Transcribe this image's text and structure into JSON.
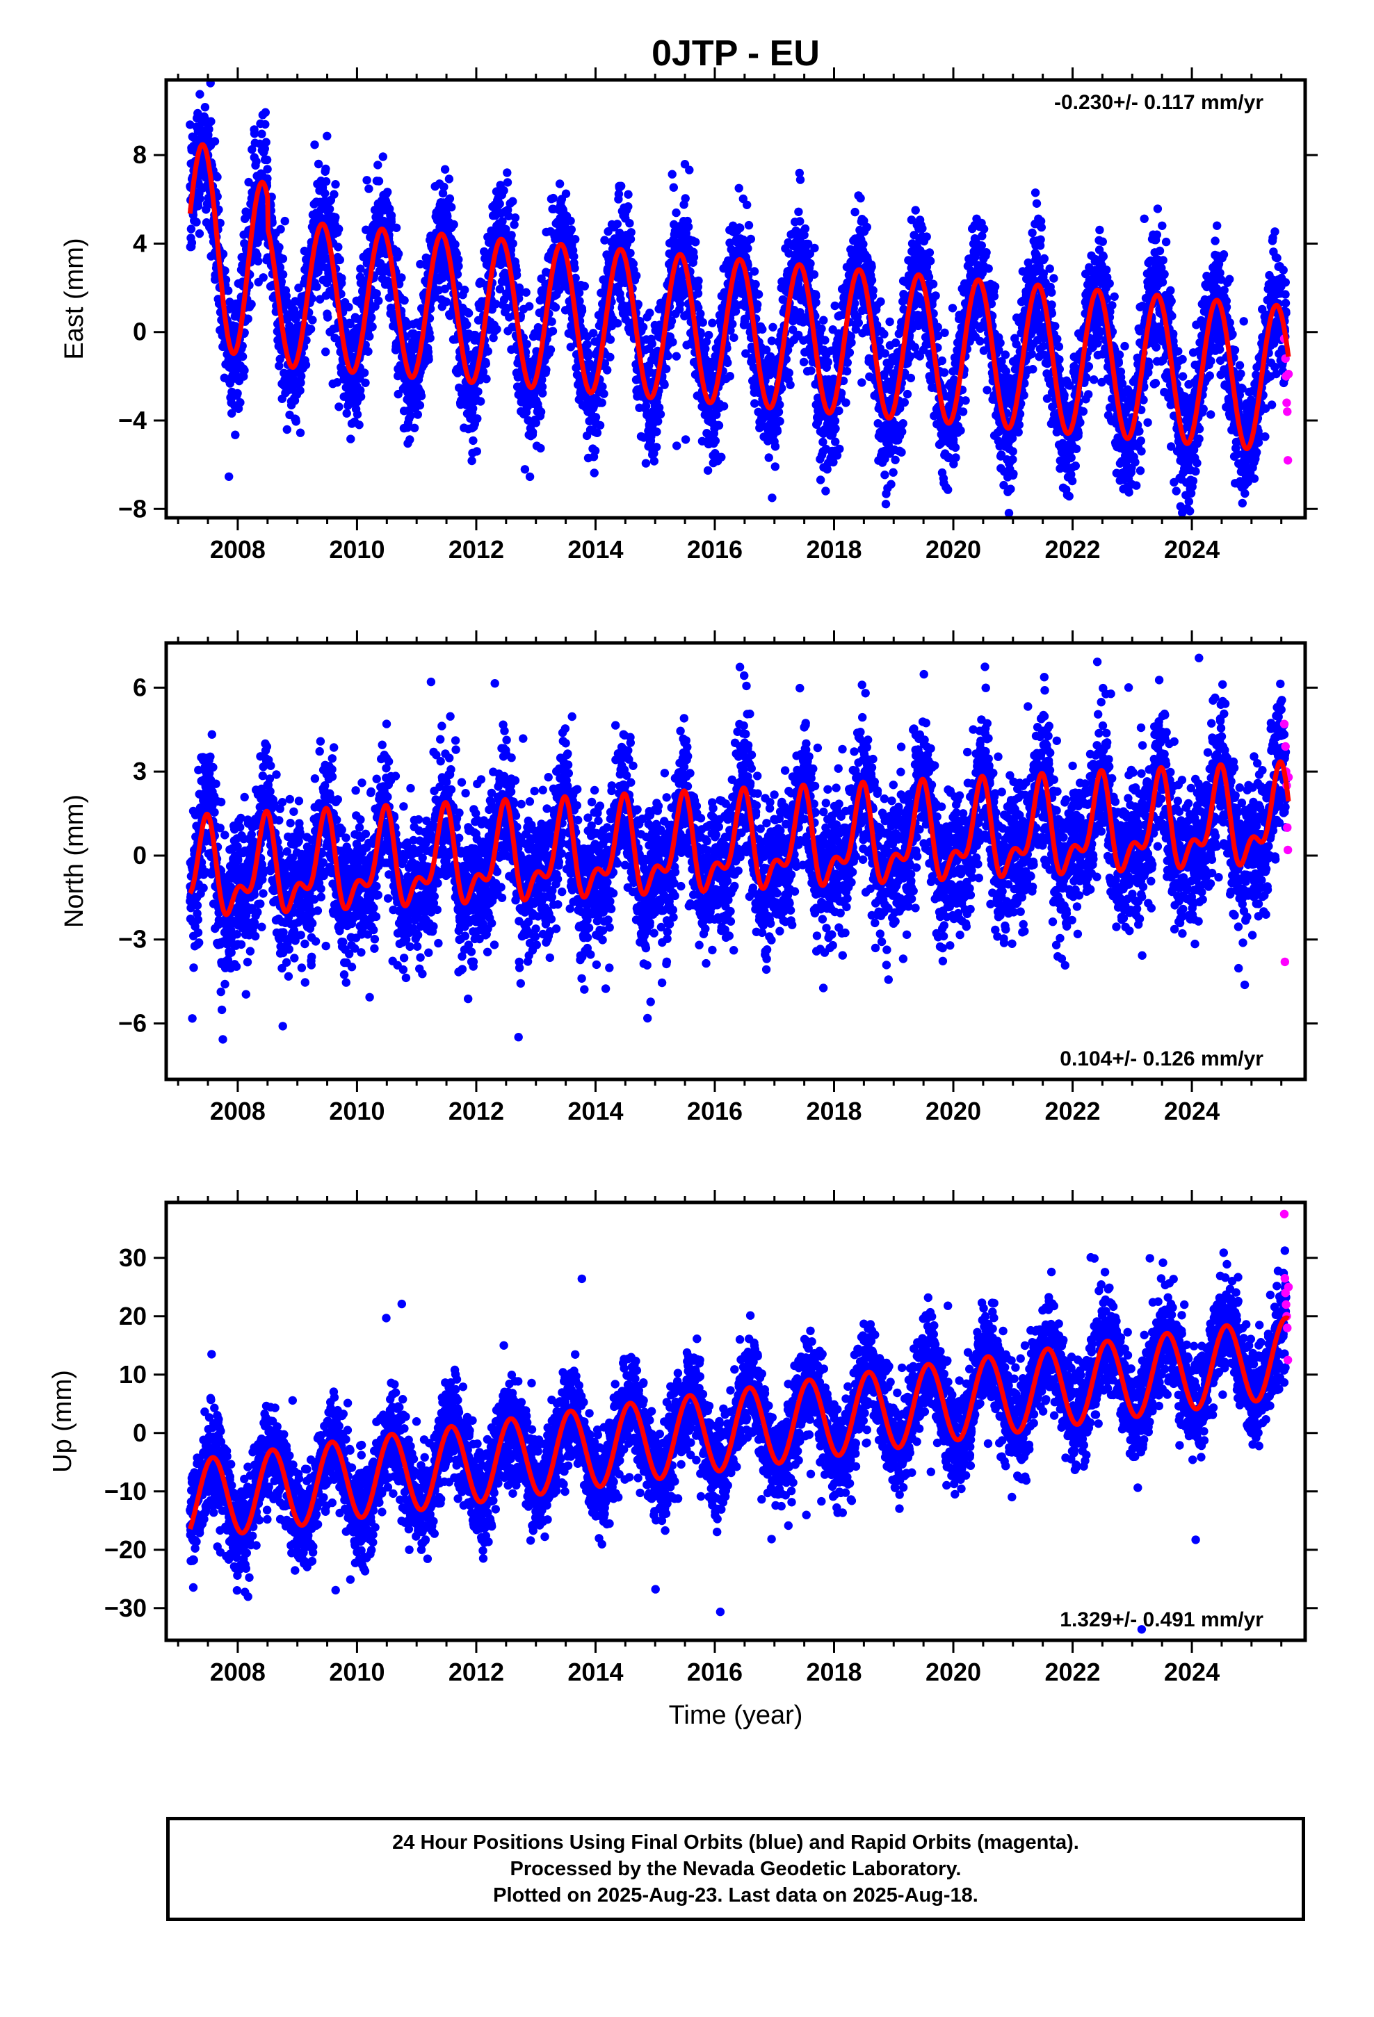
{
  "title": "0JTP - EU",
  "chart_data": [
    {
      "type": "scatter",
      "panel": "east",
      "ylabel": "East (mm)",
      "xlabel": "",
      "rate_label": "-0.230+/- 0.117 mm/yr",
      "rate_position": "top-right",
      "xlim": [
        2006.8,
        2025.9
      ],
      "ylim": [
        -8.4,
        11.4
      ],
      "xticks": [
        2008,
        2010,
        2012,
        2014,
        2016,
        2018,
        2020,
        2022,
        2024
      ],
      "xtick_labels": [
        "2008",
        "2010",
        "2012",
        "2014",
        "2016",
        "2018",
        "2020",
        "2022",
        "2024"
      ],
      "yticks": [
        -8,
        -4,
        0,
        4,
        8
      ],
      "ytick_labels": [
        "−8",
        "−4",
        "0",
        "4",
        "8"
      ],
      "model": {
        "start": 2007.2,
        "end": 2025.62,
        "offset": 2.1,
        "slope": -0.23,
        "annual_amp": 3.3,
        "annual_peak": 0.42,
        "semi_amp": 0.0,
        "semi_peak": 0.0,
        "scatter": 1.45
      },
      "rapid_points": [
        [
          2025.55,
          -0.3
        ],
        [
          2025.57,
          -1.2
        ],
        [
          2025.59,
          -3.2
        ],
        [
          2025.6,
          -3.6
        ],
        [
          2025.61,
          -5.8
        ],
        [
          2025.58,
          -2.0
        ],
        [
          2025.62,
          -1.9
        ]
      ],
      "series": [
        {
          "kind": "final-orbits",
          "color": "#0000ff"
        },
        {
          "kind": "rapid-orbits",
          "color": "#ff00ff"
        },
        {
          "kind": "fit",
          "color": "#ff0000"
        }
      ]
    },
    {
      "type": "scatter",
      "panel": "north",
      "ylabel": "North (mm)",
      "xlabel": "",
      "rate_label": "0.104+/- 0.126 mm/yr",
      "rate_position": "bottom-right",
      "xlim": [
        2006.8,
        2025.9
      ],
      "ylim": [
        -8.0,
        7.6
      ],
      "xticks": [
        2008,
        2010,
        2012,
        2014,
        2016,
        2018,
        2020,
        2022,
        2024
      ],
      "xtick_labels": [
        "2008",
        "2010",
        "2012",
        "2014",
        "2016",
        "2018",
        "2020",
        "2022",
        "2024"
      ],
      "yticks": [
        -6,
        -3,
        0,
        3,
        6
      ],
      "ytick_labels": [
        "−6",
        "−3",
        "0",
        "3",
        "6"
      ],
      "model": {
        "start": 2007.2,
        "end": 2025.62,
        "offset": -0.7,
        "slope": 0.104,
        "annual_amp": 1.4,
        "annual_peak": 0.45,
        "semi_amp": 0.8,
        "semi_peak": 0.5,
        "scatter": 1.25
      },
      "rapid_points": [
        [
          2025.55,
          4.7
        ],
        [
          2025.57,
          3.9
        ],
        [
          2025.58,
          3.0
        ],
        [
          2025.59,
          2.5
        ],
        [
          2025.6,
          1.0
        ],
        [
          2025.61,
          0.2
        ],
        [
          2025.56,
          -3.8
        ],
        [
          2025.62,
          2.8
        ]
      ],
      "series": [
        {
          "kind": "final-orbits",
          "color": "#0000ff"
        },
        {
          "kind": "rapid-orbits",
          "color": "#ff00ff"
        },
        {
          "kind": "fit",
          "color": "#ff0000"
        }
      ]
    },
    {
      "type": "scatter",
      "panel": "up",
      "ylabel": "Up (mm)",
      "xlabel": "Time (year)",
      "rate_label": "1.329+/- 0.491 mm/yr",
      "rate_position": "bottom-right",
      "xlim": [
        2006.8,
        2025.9
      ],
      "ylim": [
        -35.5,
        39.5
      ],
      "xticks": [
        2008,
        2010,
        2012,
        2014,
        2016,
        2018,
        2020,
        2022,
        2024
      ],
      "xtick_labels": [
        "2008",
        "2010",
        "2012",
        "2014",
        "2016",
        "2018",
        "2020",
        "2022",
        "2024"
      ],
      "yticks": [
        -30,
        -20,
        -10,
        0,
        10,
        20,
        30
      ],
      "ytick_labels": [
        "−30",
        "−20",
        "−10",
        "0",
        "10",
        "20",
        "30"
      ],
      "model": {
        "start": 2007.2,
        "end": 2025.62,
        "offset": -11.5,
        "slope": 1.329,
        "annual_amp": 6.8,
        "annual_peak": 0.58,
        "semi_amp": 0.0,
        "semi_peak": 0.0,
        "scatter": 4.2
      },
      "rapid_points": [
        [
          2025.55,
          37.5
        ],
        [
          2025.56,
          26.5
        ],
        [
          2025.57,
          24.0
        ],
        [
          2025.58,
          22.0
        ],
        [
          2025.59,
          20.0
        ],
        [
          2025.6,
          18.0
        ],
        [
          2025.61,
          12.5
        ],
        [
          2025.62,
          25.0
        ]
      ],
      "series": [
        {
          "kind": "final-orbits",
          "color": "#0000ff"
        },
        {
          "kind": "rapid-orbits",
          "color": "#ff00ff"
        },
        {
          "kind": "fit",
          "color": "#ff0000"
        }
      ]
    }
  ],
  "caption": {
    "line1": "24 Hour Positions Using Final Orbits (blue) and Rapid Orbits (magenta).",
    "line2": "Processed by the Nevada Geodetic Laboratory.",
    "line3": "Plotted on 2025-Aug-23. Last data on 2025-Aug-18."
  }
}
